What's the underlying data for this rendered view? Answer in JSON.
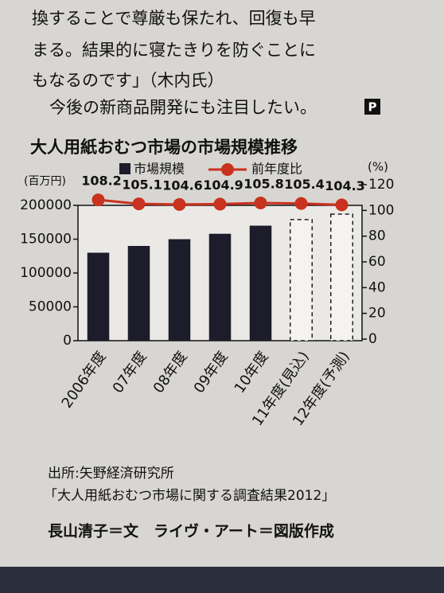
{
  "document": {
    "paragraphs": [
      "換することで尊厳も保たれ、回復も早",
      "まる。結果的に寝たきりを防ぐことに",
      "もなるのです」（木内氏）",
      "今後の新商品開発にも注目したい。"
    ],
    "end_mark": "P",
    "source": "出所:矢野経済研究所",
    "source_title": "「大人用紙おむつ市場に関する調査結果2012」",
    "credit": "長山清子＝文　ライヴ・アート＝図版作成"
  },
  "chart_data": {
    "type": "bar_line",
    "title": "大人用紙おむつ市場の市場規模推移",
    "y_label": "(百万円)",
    "y2_label": "(%)",
    "categories": [
      "2006年度",
      "07年度",
      "08年度",
      "09年度",
      "10年度",
      "11年度(見込)",
      "12年度(予測)"
    ],
    "series": [
      {
        "name": "市場規模",
        "type": "bar",
        "color": "#1c1c2a",
        "values": [
          130000,
          140000,
          150000,
          158000,
          170000,
          179000,
          187000
        ],
        "dashed": [
          false,
          false,
          false,
          false,
          false,
          true,
          true
        ]
      },
      {
        "name": "前年度比",
        "type": "line",
        "axis": "y2",
        "color": "#c8321e",
        "values": [
          108.2,
          105.1,
          104.6,
          104.9,
          105.8,
          105.4,
          104.3
        ]
      }
    ],
    "ylim": [
      0,
      200000
    ],
    "yticks": [
      0,
      50000,
      100000,
      150000,
      200000
    ],
    "y2lim": [
      0,
      120
    ],
    "y2ticks": [
      0,
      20,
      40,
      60,
      80,
      100,
      120
    ]
  }
}
